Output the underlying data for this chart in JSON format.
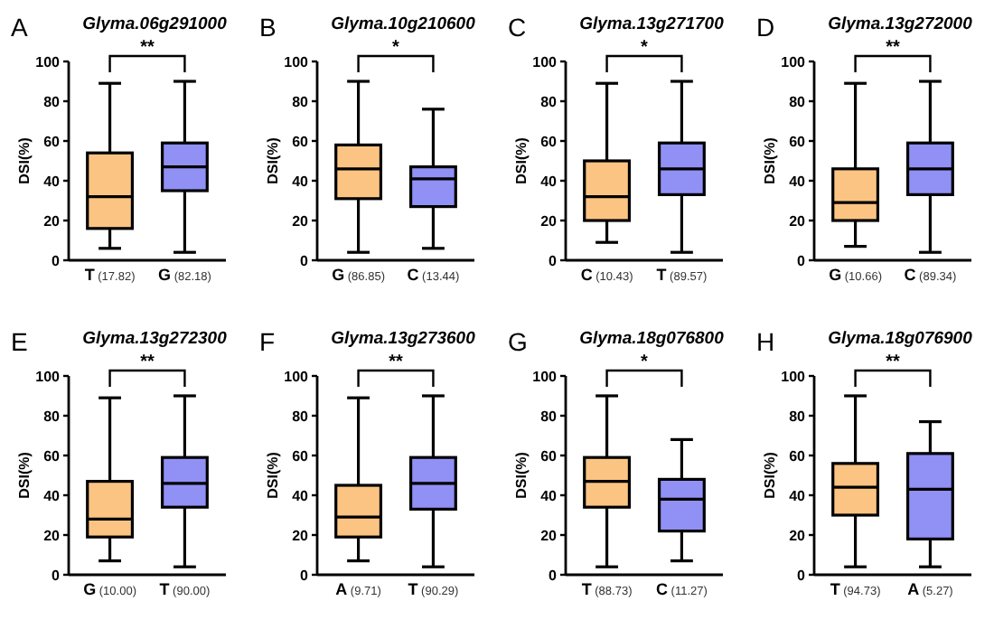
{
  "chart_data": [
    {
      "type": "box",
      "title": "Glyma.06g291000",
      "ylabel": "DSI(%)",
      "annotations": [
        "A",
        "**"
      ],
      "categories": [
        "T (17.82)",
        "G (82.18)"
      ],
      "colors": [
        "#fbc483",
        "#9090f5"
      ],
      "ylim": [
        0,
        100
      ],
      "yticks": [
        0,
        20,
        40,
        60,
        80,
        100
      ],
      "boxes": [
        {
          "low": 6,
          "q1": 16,
          "median": 32,
          "q3": 54,
          "high": 89
        },
        {
          "low": 4,
          "q1": 35,
          "median": 47,
          "q3": 59,
          "high": 90
        }
      ]
    },
    {
      "type": "box",
      "title": "Glyma.10g210600",
      "ylabel": "DSI(%)",
      "annotations": [
        "B",
        "*"
      ],
      "categories": [
        "G (86.85)",
        "C (13.44)"
      ],
      "colors": [
        "#fbc483",
        "#9090f5"
      ],
      "ylim": [
        0,
        100
      ],
      "yticks": [
        0,
        20,
        40,
        60,
        80,
        100
      ],
      "boxes": [
        {
          "low": 4,
          "q1": 31,
          "median": 46,
          "q3": 58,
          "high": 90
        },
        {
          "low": 6,
          "q1": 27,
          "median": 41,
          "q3": 47,
          "high": 76
        }
      ]
    },
    {
      "type": "box",
      "title": "Glyma.13g271700",
      "ylabel": "DSI(%)",
      "annotations": [
        "C",
        "*"
      ],
      "categories": [
        "C (10.43)",
        "T (89.57)"
      ],
      "colors": [
        "#fbc483",
        "#9090f5"
      ],
      "ylim": [
        0,
        100
      ],
      "yticks": [
        0,
        20,
        40,
        60,
        80,
        100
      ],
      "boxes": [
        {
          "low": 9,
          "q1": 20,
          "median": 32,
          "q3": 50,
          "high": 89
        },
        {
          "low": 4,
          "q1": 33,
          "median": 46,
          "q3": 59,
          "high": 90
        }
      ]
    },
    {
      "type": "box",
      "title": "Glyma.13g272000",
      "ylabel": "DSI(%)",
      "annotations": [
        "D",
        "**"
      ],
      "categories": [
        "G (10.66)",
        "C (89.34)"
      ],
      "colors": [
        "#fbc483",
        "#9090f5"
      ],
      "ylim": [
        0,
        100
      ],
      "yticks": [
        0,
        20,
        40,
        60,
        80,
        100
      ],
      "boxes": [
        {
          "low": 7,
          "q1": 20,
          "median": 29,
          "q3": 46,
          "high": 89
        },
        {
          "low": 4,
          "q1": 33,
          "median": 46,
          "q3": 59,
          "high": 90
        }
      ]
    },
    {
      "type": "box",
      "title": "Glyma.13g272300",
      "ylabel": "DSI(%)",
      "annotations": [
        "E",
        "**"
      ],
      "categories": [
        "G (10.00)",
        "T (90.00)"
      ],
      "colors": [
        "#fbc483",
        "#9090f5"
      ],
      "ylim": [
        0,
        100
      ],
      "yticks": [
        0,
        20,
        40,
        60,
        80,
        100
      ],
      "boxes": [
        {
          "low": 7,
          "q1": 19,
          "median": 28,
          "q3": 47,
          "high": 89
        },
        {
          "low": 4,
          "q1": 34,
          "median": 46,
          "q3": 59,
          "high": 90
        }
      ]
    },
    {
      "type": "box",
      "title": "Glyma.13g273600",
      "ylabel": "DSI(%)",
      "annotations": [
        "F",
        "**"
      ],
      "categories": [
        "A (9.71)",
        "T (90.29)"
      ],
      "colors": [
        "#fbc483",
        "#9090f5"
      ],
      "ylim": [
        0,
        100
      ],
      "yticks": [
        0,
        20,
        40,
        60,
        80,
        100
      ],
      "boxes": [
        {
          "low": 7,
          "q1": 19,
          "median": 29,
          "q3": 45,
          "high": 89
        },
        {
          "low": 4,
          "q1": 33,
          "median": 46,
          "q3": 59,
          "high": 90
        }
      ]
    },
    {
      "type": "box",
      "title": "Glyma.18g076800",
      "ylabel": "DSI(%)",
      "annotations": [
        "G",
        "*"
      ],
      "categories": [
        "T (88.73)",
        "C (11.27)"
      ],
      "colors": [
        "#fbc483",
        "#9090f5"
      ],
      "ylim": [
        0,
        100
      ],
      "yticks": [
        0,
        20,
        40,
        60,
        80,
        100
      ],
      "boxes": [
        {
          "low": 4,
          "q1": 34,
          "median": 47,
          "q3": 59,
          "high": 90
        },
        {
          "low": 7,
          "q1": 22,
          "median": 38,
          "q3": 48,
          "high": 68
        }
      ]
    },
    {
      "type": "box",
      "title": "Glyma.18g076900",
      "ylabel": "DSI(%)",
      "annotations": [
        "H",
        "**"
      ],
      "categories": [
        "T (94.73)",
        "A (5.27)"
      ],
      "colors": [
        "#fbc483",
        "#9090f5"
      ],
      "ylim": [
        0,
        100
      ],
      "yticks": [
        0,
        20,
        40,
        60,
        80,
        100
      ],
      "boxes": [
        {
          "low": 4,
          "q1": 30,
          "median": 44,
          "q3": 56,
          "high": 90
        },
        {
          "low": 4,
          "q1": 18,
          "median": 43,
          "q3": 61,
          "high": 77
        }
      ]
    }
  ]
}
